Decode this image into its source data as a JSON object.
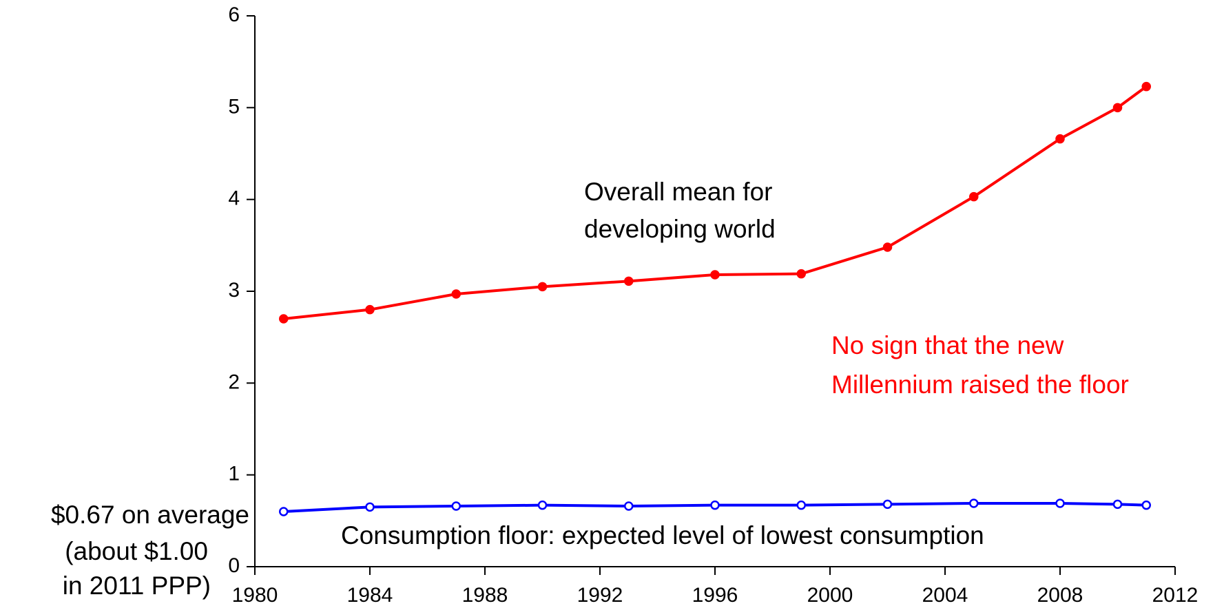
{
  "chart_data": {
    "type": "line",
    "x": [
      1981,
      1984,
      1987,
      1990,
      1993,
      1996,
      1999,
      2002,
      2005,
      2008,
      2010,
      2011
    ],
    "series": [
      {
        "color": "#ff0000",
        "marker": "filled",
        "values": [
          2.7,
          2.8,
          2.97,
          3.05,
          3.11,
          3.18,
          3.19,
          3.48,
          4.03,
          4.66,
          5.0,
          5.23
        ]
      },
      {
        "color": "#0000ff",
        "marker": "hollow",
        "values": [
          0.6,
          0.65,
          0.66,
          0.67,
          0.66,
          0.67,
          0.67,
          0.68,
          0.69,
          0.69,
          0.68,
          0.67
        ]
      }
    ],
    "xlim": [
      1980,
      2012
    ],
    "xticks": [
      1980,
      1984,
      1988,
      1992,
      1996,
      2000,
      2004,
      2008,
      2012
    ],
    "ylim": [
      0,
      6
    ],
    "yticks": [
      0,
      1,
      2,
      3,
      4,
      5,
      6
    ],
    "annotations": [
      {
        "lines": [
          "Overall mean for",
          "developing world"
        ],
        "color": "#000000"
      },
      {
        "lines": [
          "No sign that the new",
          "Millennium raised the floor"
        ],
        "color": "#ff0000"
      },
      {
        "lines": [
          "Consumption floor: expected level of lowest consumption"
        ],
        "color": "#000000"
      },
      {
        "lines": [
          "$0.67 on average",
          "(about $1.00",
          "in 2011 PPP)"
        ],
        "color": "#000000"
      }
    ]
  }
}
